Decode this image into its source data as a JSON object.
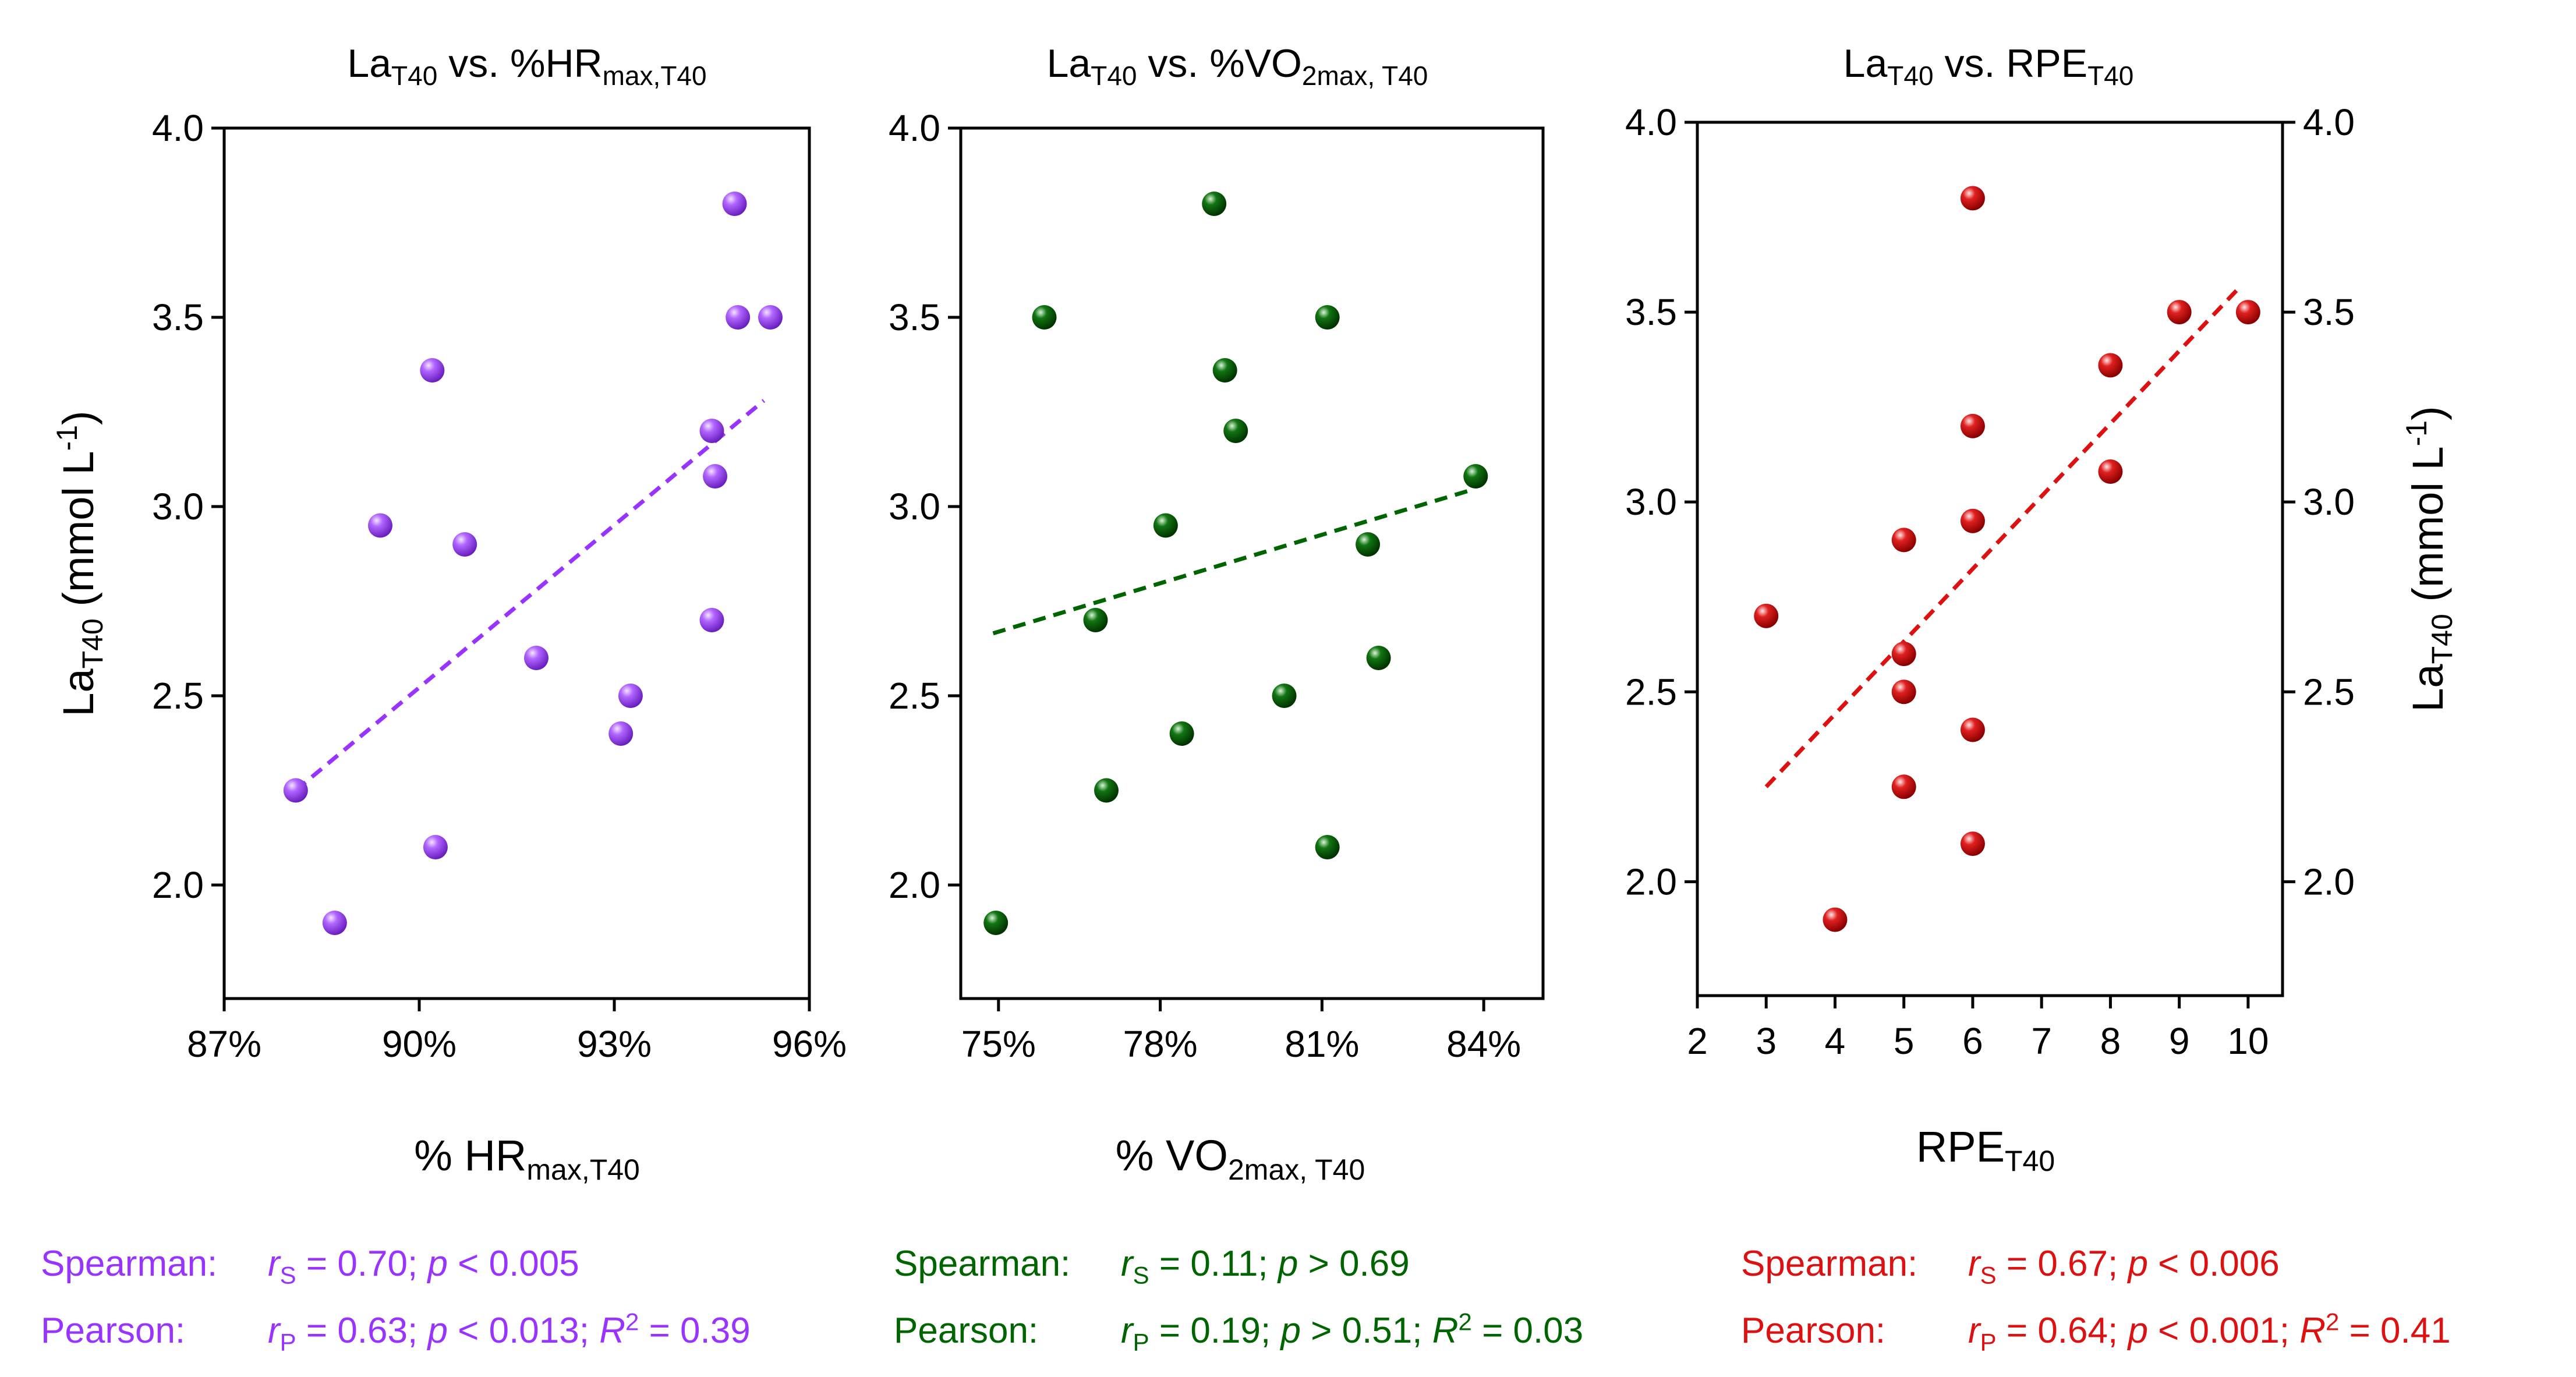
{
  "colors": {
    "purple": "#9933ff",
    "green": "#006400",
    "red": "#dd1111",
    "axis": "#000000"
  },
  "chart_data": [
    {
      "type": "scatter",
      "title": {
        "main": "La",
        "main_sub": "T40",
        "rest": " vs. %HR",
        "rest_sub": "max,T40"
      },
      "xlabel": {
        "main": "% HR",
        "sub": "max,T40"
      },
      "ylabel": {
        "main": "La",
        "sub": "T40",
        "unit": " (mmol L",
        "unit_sup": "-1",
        "close": ")"
      },
      "xlim": [
        87,
        96
      ],
      "ylim": [
        1.7,
        4.0
      ],
      "xticks": [
        87,
        90,
        93,
        96
      ],
      "xtick_labels": [
        "87%",
        "90%",
        "93%",
        "96%"
      ],
      "yticks": [
        2.0,
        2.5,
        3.0,
        3.5,
        4.0
      ],
      "ytick_labels": [
        "2.0",
        "2.5",
        "3.0",
        "3.5",
        "4.0"
      ],
      "color": "purple",
      "x": [
        88.1,
        88.7,
        89.4,
        90.2,
        90.25,
        90.7,
        91.8,
        93.1,
        93.25,
        94.5,
        94.5,
        94.55,
        94.85,
        94.9,
        95.4
      ],
      "y": [
        2.25,
        1.9,
        2.95,
        3.36,
        2.1,
        2.9,
        2.6,
        2.4,
        2.5,
        2.7,
        3.2,
        3.08,
        3.8,
        3.5,
        3.5
      ],
      "fit": {
        "x": [
          88.1,
          95.3
        ],
        "y": [
          2.25,
          3.28
        ]
      },
      "stats": {
        "spearman_label": "Spearman:",
        "r_symbol": "r",
        "spearman_sub": "S",
        "spearman_text": " = 0.70; ",
        "p_symbol": "p",
        "spearman_p": " < 0.005",
        "pearson_label": "Pearson:",
        "pearson_sub": "P",
        "pearson_text": " = 0.63; ",
        "pearson_p": " < 0.013; ",
        "r2_symbol": "R",
        "r2_sup": "2",
        "r2_text": " = 0.39"
      }
    },
    {
      "type": "scatter",
      "title": {
        "main": "La",
        "main_sub": "T40",
        "rest": " vs. %VO",
        "rest_sub": "2max, T40"
      },
      "xlabel": {
        "main": "% VO",
        "sub": "2max, T40"
      },
      "xlim": [
        74.3,
        85.1
      ],
      "ylim": [
        1.7,
        4.0
      ],
      "xticks": [
        75,
        78,
        81,
        84
      ],
      "xtick_labels": [
        "75%",
        "78%",
        "81%",
        "84%"
      ],
      "yticks": [
        2.0,
        2.5,
        3.0,
        3.5,
        4.0
      ],
      "ytick_labels": [
        "2.0",
        "2.5",
        "3.0",
        "3.5",
        "4.0"
      ],
      "color": "green",
      "x": [
        74.95,
        75.85,
        76.8,
        77.0,
        78.1,
        78.4,
        79.0,
        79.2,
        79.4,
        80.3,
        81.1,
        81.1,
        81.85,
        82.05,
        83.85
      ],
      "y": [
        1.9,
        3.5,
        2.7,
        2.25,
        2.95,
        2.4,
        3.8,
        3.36,
        3.2,
        2.5,
        3.5,
        2.1,
        2.9,
        2.6,
        3.08
      ],
      "fit": {
        "x": [
          74.9,
          83.8
        ],
        "y": [
          2.665,
          3.045
        ]
      },
      "stats": {
        "spearman_label": "Spearman:",
        "r_symbol": "r",
        "spearman_sub": "S",
        "spearman_text": " = 0.11; ",
        "p_symbol": "p",
        "spearman_p": " > 0.69",
        "pearson_label": "Pearson:",
        "pearson_sub": "P",
        "pearson_text": " = 0.19; ",
        "pearson_p": " > 0.51; ",
        "r2_symbol": "R",
        "r2_sup": "2",
        "r2_text": " = 0.03"
      }
    },
    {
      "type": "scatter",
      "title": {
        "main": "La",
        "main_sub": "T40",
        "rest": " vs. RPE",
        "rest_sub": "T40"
      },
      "xlabel": {
        "main": "RPE",
        "sub": "T40"
      },
      "ylabel": {
        "main": "La",
        "sub": "T40",
        "unit": " (mmol L",
        "unit_sup": "-1",
        "close": ")"
      },
      "xlim": [
        2,
        10.5
      ],
      "ylim": [
        1.7,
        4.0
      ],
      "xticks": [
        2,
        3,
        4,
        5,
        6,
        7,
        8,
        9,
        10
      ],
      "xtick_labels": [
        "2",
        "3",
        "4",
        "5",
        "6",
        "7",
        "8",
        "9",
        "10"
      ],
      "yticks": [
        2.0,
        2.5,
        3.0,
        3.5,
        4.0
      ],
      "ytick_labels": [
        "2.0",
        "2.5",
        "3.0",
        "3.5",
        "4.0"
      ],
      "color": "red",
      "x": [
        3,
        4,
        5,
        5,
        5,
        5,
        6,
        6,
        6,
        6,
        6,
        8,
        8,
        9,
        10
      ],
      "y": [
        2.7,
        1.9,
        2.9,
        2.6,
        2.5,
        2.25,
        3.8,
        3.2,
        2.95,
        2.4,
        2.1,
        3.36,
        3.08,
        3.5,
        3.5
      ],
      "fit": {
        "x": [
          3,
          9.9
        ],
        "y": [
          2.25,
          3.57
        ]
      },
      "stats": {
        "spearman_label": "Spearman:",
        "r_symbol": "r",
        "spearman_sub": "S",
        "spearman_text": " = 0.67; ",
        "p_symbol": "p",
        "spearman_p": " < 0.006",
        "pearson_label": "Pearson:",
        "pearson_sub": "P",
        "pearson_text": " = 0.64; ",
        "pearson_p": " < 0.001; ",
        "r2_symbol": "R",
        "r2_sup": "2",
        "r2_text": " = 0.41"
      }
    }
  ]
}
